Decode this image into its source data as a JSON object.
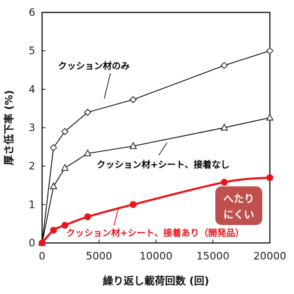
{
  "chart_data": {
    "type": "line",
    "xlabel": "繰り返し載荷回数 (回)",
    "ylabel": "厚さ低下率 (%)",
    "xlim": [
      0,
      20000
    ],
    "ylim": [
      0,
      6
    ],
    "x_ticks": [
      0,
      5000,
      10000,
      15000,
      20000
    ],
    "y_ticks": [
      0,
      1,
      2,
      3,
      4,
      5,
      6
    ],
    "grid": false,
    "series": [
      {
        "name": "クッション材のみ",
        "color": "#000000",
        "marker": "diamond",
        "x": [
          0,
          1000,
          2000,
          4000,
          8000,
          16000,
          20000
        ],
        "y": [
          0.0,
          2.48,
          2.9,
          3.4,
          3.73,
          4.62,
          5.0
        ]
      },
      {
        "name": "クッション材+シート、接着なし",
        "color": "#000000",
        "marker": "triangle",
        "x": [
          0,
          1000,
          2000,
          4000,
          8000,
          16000,
          20000
        ],
        "y": [
          0.0,
          1.47,
          1.95,
          2.33,
          2.52,
          3.0,
          3.26
        ]
      },
      {
        "name": "クッション材+シート、接着あり（開発品）",
        "color": "#e8141b",
        "marker": "circle",
        "x": [
          0,
          1000,
          2000,
          4000,
          8000,
          16000,
          20000
        ],
        "y": [
          0.0,
          0.33,
          0.46,
          0.68,
          1.0,
          1.58,
          1.7
        ]
      }
    ],
    "annotation": {
      "lines": [
        "へたり",
        "にくい"
      ],
      "fill": "#c0504d"
    }
  }
}
